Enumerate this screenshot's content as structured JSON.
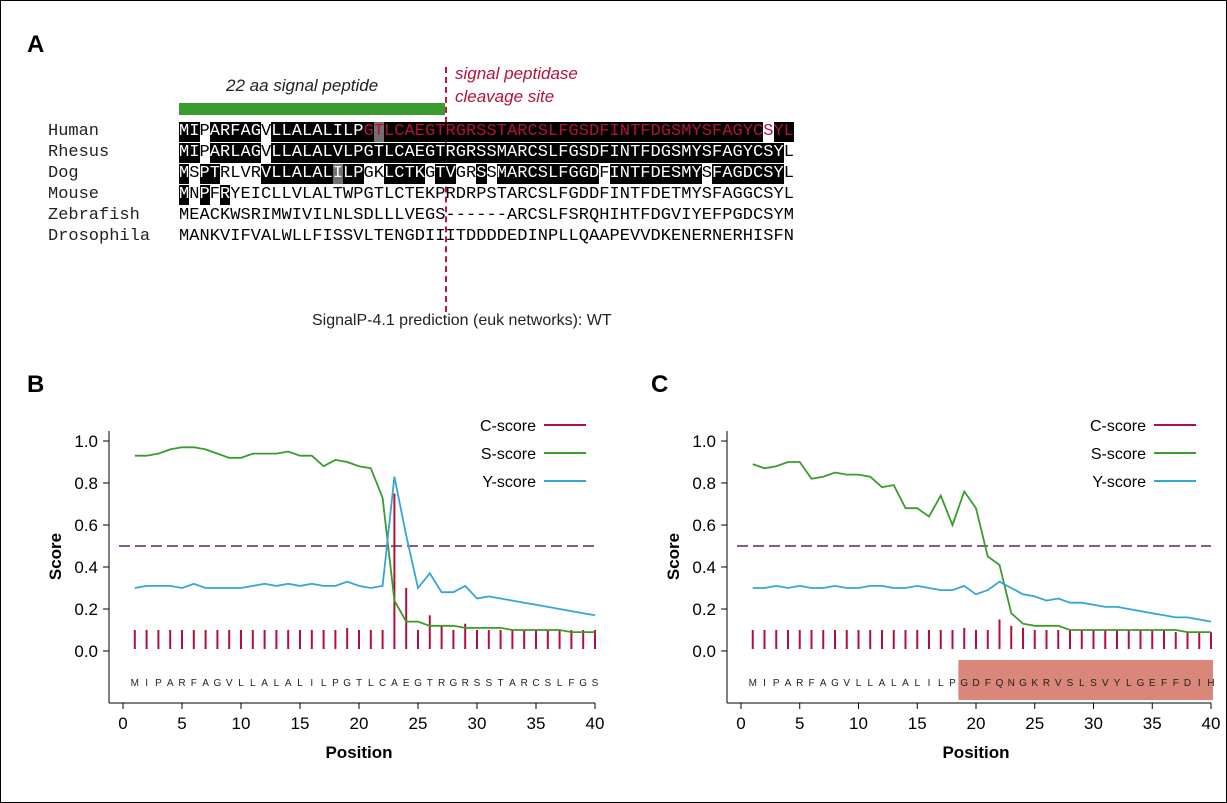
{
  "panel_a": {
    "letter": "A",
    "signal_peptide_label": "22 aa signal peptide",
    "cleavage_label_line1": "signal peptidase",
    "cleavage_label_line2": "cleavage site",
    "caption": "SignalP-4.1 prediction (euk networks): WT",
    "colors": {
      "signal_bar": "#3a9b2e",
      "cleavage": "#c0143c",
      "highlight_text": "#b5123a"
    },
    "rows": [
      {
        "species": "Human",
        "seq": "MIPARFAGVLLALALILPGTLCAEGTRGRSSTARCSLFGSDFINTFDGSMYSFAGYCSYL",
        "shade": "BB.BBBBB.BBBBBBBBBBGBBBBBBBBBBBBBBBBBBBBBBBBBBBBBBBBBBBBB.BBBB",
        "red_from": 18
      },
      {
        "species": "Rhesus",
        "seq": "MIPARLAGVLLALALVLPGTLCAEGTRGRSSMARCSLFGSDFINTFDGSMYSFAGYCSYL",
        "shade": "BB.BBBBB.BBBBBBBBBBBBBBBBBBBBBBBBBBBBBBBBBBBBBBBBBBBBBBBBBB.BBBB",
        "red_from": -1
      },
      {
        "species": "Dog",
        "seq": "MSPTRLVRVLLALALILPGKLCTKGTVGRSSMARCSLFGGDFINTFDESMYSFAGDCSYL",
        "shade": "B.BB....BBBBBBBGBB..BBBB.BB..B.BBBBBBBBBB.BBBBBBBBB.BBBBBBB..BBBB",
        "red_from": -1
      },
      {
        "species": "Mouse",
        "seq": "MNPFRYEICLLVLALTWPGTLCTEKPRDRPSTARCSLFGDDFINTFDETMYSFAGGCSYL",
        "shade": "B.B.B.........",
        "red_from": -1
      },
      {
        "species": "Zebrafish",
        "seq": "MEACKWSRIMWIVILNLSDLLLVEGS------ARCSLFSRQHIHTFDGVIYEFPGDCSYM",
        "shade": "",
        "red_from": -1
      },
      {
        "species": "Drosophila",
        "seq": "MANKVIFVALWLLFISSVLTENGDIIITDDDDEDINPLLQAAPEVVDKENERNERHISFN",
        "shade": "",
        "red_from": -1
      }
    ]
  },
  "panel_b": {
    "letter": "B",
    "chart_data": {
      "type": "line",
      "xlabel": "Position",
      "ylabel": "Score",
      "xlim": [
        0,
        40
      ],
      "ylim": [
        0,
        1.0
      ],
      "xticks": [
        "0",
        "5",
        "10",
        "15",
        "20",
        "25",
        "30",
        "35",
        "40"
      ],
      "yticks": [
        "0.0",
        "0.2",
        "0.4",
        "0.6",
        "0.8",
        "1.0"
      ],
      "threshold": 0.5,
      "sequence_letters": "MIPARFAGVLLALALILPGTLCAEGTRGRSSTARCSLFGS",
      "legend": [
        "C-score",
        "S-score",
        "Y-score"
      ],
      "colors": {
        "c": "#b0103a",
        "s": "#3a9b2e",
        "y": "#35a5d8",
        "threshold": "#5a2a5a"
      },
      "c_score": [
        0.1,
        0.1,
        0.1,
        0.1,
        0.1,
        0.1,
        0.1,
        0.1,
        0.1,
        0.1,
        0.1,
        0.1,
        0.1,
        0.1,
        0.1,
        0.1,
        0.1,
        0.1,
        0.11,
        0.1,
        0.1,
        0.1,
        0.75,
        0.3,
        0.1,
        0.17,
        0.12,
        0.1,
        0.13,
        0.1,
        0.1,
        0.1,
        0.1,
        0.1,
        0.1,
        0.1,
        0.1,
        0.1,
        0.1,
        0.1
      ],
      "s_score": [
        0.93,
        0.93,
        0.94,
        0.96,
        0.97,
        0.97,
        0.96,
        0.94,
        0.92,
        0.92,
        0.94,
        0.94,
        0.94,
        0.95,
        0.93,
        0.93,
        0.88,
        0.91,
        0.9,
        0.88,
        0.87,
        0.73,
        0.24,
        0.14,
        0.14,
        0.12,
        0.12,
        0.12,
        0.11,
        0.11,
        0.11,
        0.11,
        0.1,
        0.1,
        0.1,
        0.1,
        0.1,
        0.09,
        0.09,
        0.09
      ],
      "y_score": [
        0.3,
        0.31,
        0.31,
        0.31,
        0.3,
        0.32,
        0.3,
        0.3,
        0.3,
        0.3,
        0.31,
        0.32,
        0.31,
        0.32,
        0.31,
        0.32,
        0.31,
        0.31,
        0.33,
        0.31,
        0.3,
        0.31,
        0.83,
        0.55,
        0.3,
        0.37,
        0.28,
        0.28,
        0.31,
        0.25,
        0.26,
        0.25,
        0.24,
        0.23,
        0.22,
        0.21,
        0.2,
        0.19,
        0.18,
        0.17
      ]
    }
  },
  "panel_c": {
    "letter": "C",
    "chart_data": {
      "type": "line",
      "xlabel": "Position",
      "ylabel": "Score",
      "xlim": [
        0,
        40
      ],
      "ylim": [
        0,
        1.0
      ],
      "xticks": [
        "0",
        "5",
        "10",
        "15",
        "20",
        "25",
        "30",
        "35",
        "40"
      ],
      "yticks": [
        "0.0",
        "0.2",
        "0.4",
        "0.6",
        "0.8",
        "1.0"
      ],
      "threshold": 0.5,
      "sequence_letters": "MIPARFAGVLLALALILPGDFQNGKRVSLSVYLGEFFDIH",
      "highlight_from": 19,
      "highlight_color": "#d9877a",
      "legend": [
        "C-score",
        "S-score",
        "Y-score"
      ],
      "colors": {
        "c": "#b0103a",
        "s": "#3a9b2e",
        "y": "#35a5d8",
        "threshold": "#5a2a5a"
      },
      "c_score": [
        0.1,
        0.1,
        0.1,
        0.1,
        0.1,
        0.1,
        0.1,
        0.1,
        0.1,
        0.1,
        0.1,
        0.1,
        0.1,
        0.1,
        0.1,
        0.1,
        0.1,
        0.1,
        0.11,
        0.1,
        0.1,
        0.15,
        0.12,
        0.11,
        0.1,
        0.1,
        0.1,
        0.1,
        0.1,
        0.1,
        0.1,
        0.1,
        0.1,
        0.1,
        0.1,
        0.1,
        0.09,
        0.09,
        0.09,
        0.09
      ],
      "s_score": [
        0.89,
        0.87,
        0.88,
        0.9,
        0.9,
        0.82,
        0.83,
        0.85,
        0.84,
        0.84,
        0.83,
        0.78,
        0.79,
        0.68,
        0.68,
        0.64,
        0.74,
        0.6,
        0.76,
        0.68,
        0.45,
        0.41,
        0.18,
        0.13,
        0.12,
        0.12,
        0.12,
        0.1,
        0.1,
        0.1,
        0.1,
        0.1,
        0.1,
        0.1,
        0.1,
        0.1,
        0.1,
        0.09,
        0.09,
        0.09
      ],
      "y_score": [
        0.3,
        0.3,
        0.31,
        0.3,
        0.31,
        0.3,
        0.3,
        0.31,
        0.3,
        0.3,
        0.31,
        0.31,
        0.3,
        0.3,
        0.31,
        0.3,
        0.29,
        0.29,
        0.31,
        0.27,
        0.29,
        0.33,
        0.3,
        0.27,
        0.26,
        0.24,
        0.25,
        0.23,
        0.23,
        0.22,
        0.21,
        0.21,
        0.2,
        0.19,
        0.18,
        0.17,
        0.16,
        0.16,
        0.15,
        0.14
      ]
    }
  }
}
